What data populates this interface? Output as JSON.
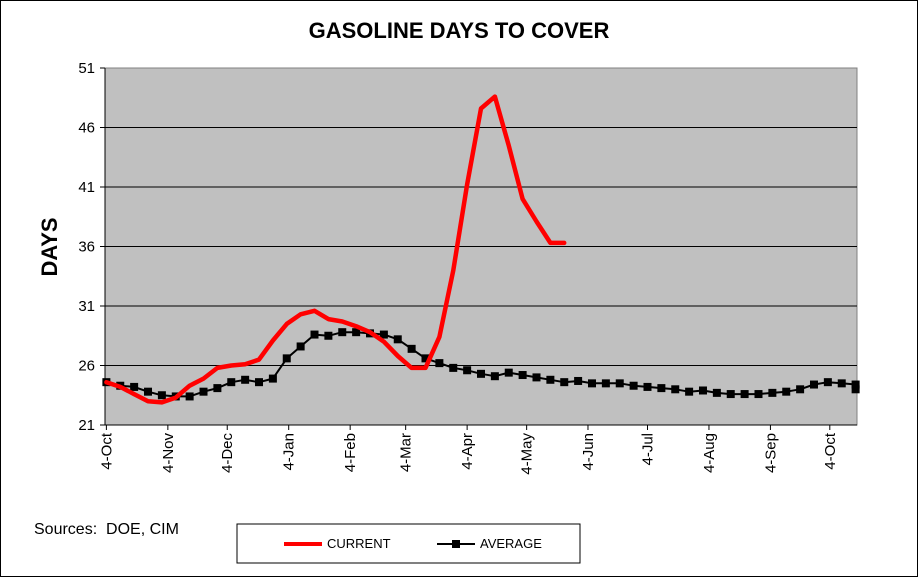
{
  "sources_text": "Sources:  DOE, CIM",
  "colors": {
    "plot_bg": "#c0c0c0",
    "current": "#ff0000",
    "average": "#000000",
    "grid": "#000000"
  },
  "chart_data": {
    "type": "line",
    "title": "GASOLINE DAYS TO COVER",
    "ylabel": "DAYS",
    "xlabel": "",
    "ylim": [
      21,
      51
    ],
    "yticks": [
      21,
      26,
      31,
      36,
      41,
      46,
      51
    ],
    "grid": true,
    "legend_position": "bottom-center",
    "x_tick_labels": [
      "4-Oct",
      "4-Nov",
      "4-Dec",
      "4-Jan",
      "4-Feb",
      "4-Mar",
      "4-Apr",
      "4-May",
      "4-Jun",
      "4-Jul",
      "4-Aug",
      "4-Sep",
      "4-Oct"
    ],
    "x_tick_weeks": [
      0,
      4.43,
      8.71,
      13.14,
      17.57,
      21.57,
      26.0,
      30.29,
      34.71,
      39.0,
      43.43,
      47.86,
      52.14
    ],
    "series": [
      {
        "name": "CURRENT",
        "color": "#ff0000",
        "marker": false,
        "week": [
          0,
          1,
          2,
          3,
          4,
          5,
          6,
          7,
          8,
          9,
          10,
          11,
          12,
          13,
          14,
          15,
          16,
          17,
          18,
          19,
          20,
          21,
          22,
          23,
          24,
          25,
          26,
          27,
          28,
          29,
          30,
          31,
          32,
          33
        ],
        "values": [
          24.6,
          24.2,
          23.6,
          23.0,
          22.9,
          23.3,
          24.3,
          24.9,
          25.8,
          26.0,
          26.1,
          26.5,
          28.1,
          29.5,
          30.3,
          30.6,
          29.9,
          29.7,
          29.3,
          28.8,
          28.0,
          26.8,
          25.8,
          25.8,
          28.4,
          34.0,
          41.2,
          47.6,
          48.6,
          44.5,
          40.0,
          38.1,
          36.3,
          36.3
        ]
      },
      {
        "name": "AVERAGE",
        "color": "#000000",
        "marker": true,
        "week": [
          0,
          1,
          2,
          3,
          4,
          5,
          6,
          7,
          8,
          9,
          10,
          11,
          12,
          13,
          14,
          15,
          16,
          17,
          18,
          19,
          20,
          21,
          22,
          23,
          24,
          25,
          26,
          27,
          28,
          29,
          30,
          31,
          32,
          33,
          34,
          35,
          36,
          37,
          38,
          39,
          40,
          41,
          42,
          43,
          44,
          45,
          46,
          47,
          48,
          49,
          50,
          51,
          52,
          53,
          54
        ],
        "values": [
          24.6,
          24.3,
          24.2,
          23.8,
          23.5,
          23.4,
          23.4,
          23.8,
          24.1,
          24.6,
          24.8,
          24.6,
          24.9,
          26.6,
          27.6,
          28.6,
          28.5,
          28.8,
          28.8,
          28.7,
          28.6,
          28.2,
          27.4,
          26.6,
          26.2,
          25.8,
          25.6,
          25.3,
          25.1,
          25.4,
          25.2,
          25.0,
          24.8,
          24.6,
          24.7,
          24.5,
          24.5,
          24.5,
          24.3,
          24.2,
          24.1,
          24.0,
          23.8,
          23.9,
          23.7,
          23.6,
          23.6,
          23.6,
          23.7,
          23.8,
          24.0,
          24.4,
          24.6,
          24.5,
          24.4
        ]
      }
    ],
    "extra_average_points": [
      {
        "week": 54,
        "value": 24.0
      }
    ]
  }
}
